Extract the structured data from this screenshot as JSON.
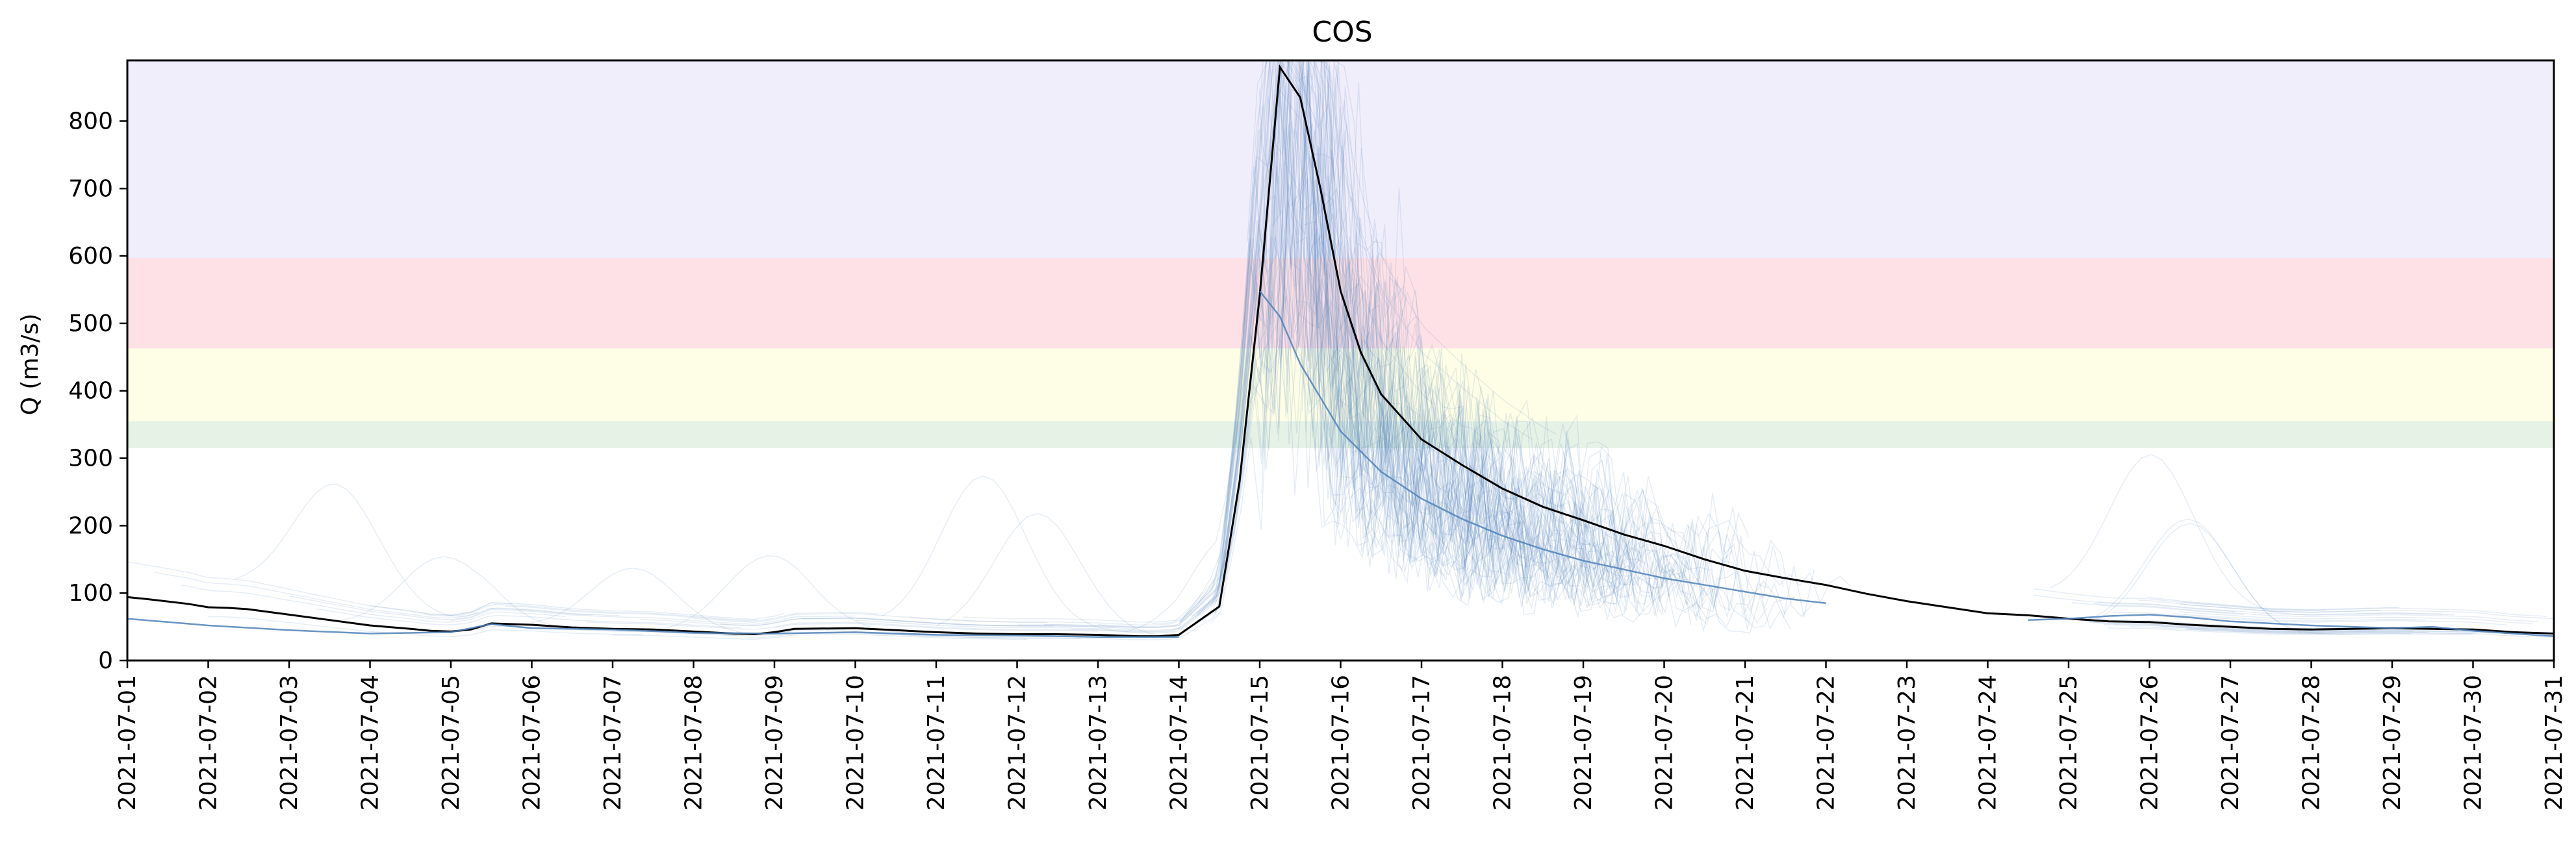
{
  "chart_data": {
    "type": "line",
    "title": "COS",
    "xlabel": "",
    "ylabel": "Q (m3/s)",
    "xlim": [
      "2021-07-01",
      "2021-07-31"
    ],
    "ylim": [
      0,
      890
    ],
    "x_ticks": [
      "2021-07-01",
      "2021-07-02",
      "2021-07-03",
      "2021-07-04",
      "2021-07-05",
      "2021-07-06",
      "2021-07-07",
      "2021-07-08",
      "2021-07-09",
      "2021-07-10",
      "2021-07-11",
      "2021-07-12",
      "2021-07-13",
      "2021-07-14",
      "2021-07-15",
      "2021-07-16",
      "2021-07-17",
      "2021-07-18",
      "2021-07-19",
      "2021-07-20",
      "2021-07-21",
      "2021-07-22",
      "2021-07-23",
      "2021-07-24",
      "2021-07-25",
      "2021-07-26",
      "2021-07-27",
      "2021-07-28",
      "2021-07-29",
      "2021-07-30",
      "2021-07-31"
    ],
    "y_ticks": [
      0,
      100,
      200,
      300,
      400,
      500,
      600,
      700,
      800
    ],
    "grid": false,
    "legend": "none",
    "threshold_bands": [
      {
        "from": 315,
        "to": 355,
        "color": "#e6f2e6"
      },
      {
        "from": 355,
        "to": 463,
        "color": "#fefee6"
      },
      {
        "from": 463,
        "to": 597,
        "color": "#fee1e6"
      },
      {
        "from": 597,
        "to": 890,
        "color": "#f1eefb"
      }
    ],
    "colors": {
      "observed": "#000000",
      "forecast": "#4f81b8",
      "ensemble": "#4f81b8"
    },
    "series": [
      {
        "role": "observed",
        "x": [
          "2021-07-01",
          "2021-07-01 06:00",
          "2021-07-01 18:00",
          "2021-07-02",
          "2021-07-02 06:00",
          "2021-07-02 12:00",
          "2021-07-03",
          "2021-07-03 12:00",
          "2021-07-04",
          "2021-07-04 12:00",
          "2021-07-04 18:00",
          "2021-07-05",
          "2021-07-05 06:00",
          "2021-07-05 12:00",
          "2021-07-06",
          "2021-07-06 12:00",
          "2021-07-07",
          "2021-07-07 12:00",
          "2021-07-08",
          "2021-07-08 12:00",
          "2021-07-08 18:00",
          "2021-07-09",
          "2021-07-09 06:00",
          "2021-07-10",
          "2021-07-10 12:00",
          "2021-07-11",
          "2021-07-11 12:00",
          "2021-07-12",
          "2021-07-12 12:00",
          "2021-07-13",
          "2021-07-13 12:00",
          "2021-07-13 18:00",
          "2021-07-14",
          "2021-07-14 12:00",
          "2021-07-14 18:00",
          "2021-07-15",
          "2021-07-15 06:00",
          "2021-07-15 12:00",
          "2021-07-15 18:00",
          "2021-07-16",
          "2021-07-16 06:00",
          "2021-07-16 12:00",
          "2021-07-17",
          "2021-07-17 12:00",
          "2021-07-18",
          "2021-07-18 12:00",
          "2021-07-19",
          "2021-07-19 12:00",
          "2021-07-20",
          "2021-07-20 12:00",
          "2021-07-21",
          "2021-07-21 12:00",
          "2021-07-22",
          "2021-07-22 12:00",
          "2021-07-23",
          "2021-07-23 12:00",
          "2021-07-24",
          "2021-07-24 12:00",
          "2021-07-25",
          "2021-07-25 12:00",
          "2021-07-26",
          "2021-07-26 12:00",
          "2021-07-27",
          "2021-07-27 12:00",
          "2021-07-28",
          "2021-07-28 12:00",
          "2021-07-29",
          "2021-07-29 12:00",
          "2021-07-30",
          "2021-07-30 12:00",
          "2021-07-31"
        ],
        "values": [
          94,
          91,
          84,
          79,
          78,
          76,
          68,
          60,
          52,
          47,
          44,
          43,
          46,
          55,
          53,
          49,
          47,
          46,
          43,
          40,
          39,
          42,
          47,
          48,
          45,
          42,
          40,
          39,
          39,
          38,
          36,
          36,
          38,
          80,
          265,
          542,
          880,
          835,
          700,
          548,
          457,
          395,
          328,
          290,
          255,
          228,
          208,
          187,
          170,
          150,
          133,
          122,
          112,
          99,
          88,
          79,
          70,
          67,
          62,
          58,
          57,
          53,
          50,
          47,
          46,
          47,
          48,
          47,
          46,
          42,
          40
        ]
      },
      {
        "role": "forecast",
        "x": [
          "2021-07-15",
          "2021-07-15 06:00",
          "2021-07-15 12:00",
          "2021-07-16",
          "2021-07-16 12:00",
          "2021-07-17",
          "2021-07-17 12:00",
          "2021-07-18",
          "2021-07-18 12:00",
          "2021-07-19",
          "2021-07-19 12:00",
          "2021-07-20",
          "2021-07-20 12:00",
          "2021-07-21",
          "2021-07-21 12:00",
          "2021-07-22"
        ],
        "values": [
          548,
          510,
          440,
          340,
          280,
          240,
          210,
          185,
          165,
          148,
          135,
          122,
          112,
          102,
          92,
          85
        ]
      },
      {
        "role": "forecast",
        "x": [
          "2021-07-01",
          "2021-07-01 12:00",
          "2021-07-02",
          "2021-07-03",
          "2021-07-04",
          "2021-07-05",
          "2021-07-05 12:00",
          "2021-07-06",
          "2021-07-07",
          "2021-07-08",
          "2021-07-09",
          "2021-07-10",
          "2021-07-11",
          "2021-07-12",
          "2021-07-13",
          "2021-07-14"
        ],
        "values": [
          62,
          57,
          52,
          45,
          40,
          42,
          54,
          48,
          46,
          41,
          40,
          42,
          38,
          37,
          35,
          35
        ]
      },
      {
        "role": "forecast",
        "x": [
          "2021-07-24 12:00",
          "2021-07-25",
          "2021-07-25 12:00",
          "2021-07-26",
          "2021-07-26 12:00",
          "2021-07-27",
          "2021-07-27 12:00",
          "2021-07-28",
          "2021-07-28 12:00",
          "2021-07-29",
          "2021-07-29 12:00",
          "2021-07-30",
          "2021-07-30 12:00",
          "2021-07-31"
        ],
        "values": [
          60,
          62,
          66,
          68,
          64,
          58,
          55,
          52,
          50,
          48,
          50,
          44,
          40,
          36
        ]
      }
    ]
  }
}
